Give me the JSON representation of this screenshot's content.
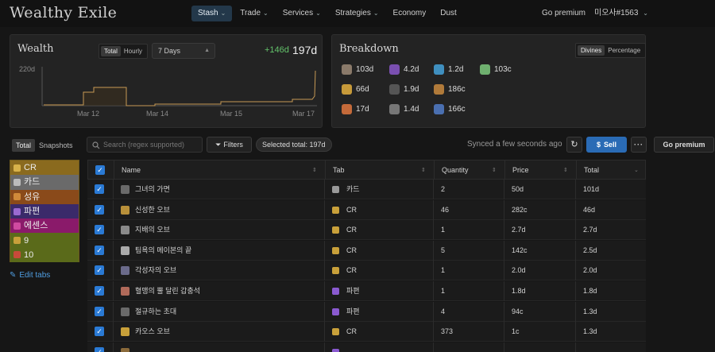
{
  "app": {
    "title": "Wealthy Exile"
  },
  "nav": {
    "items": [
      {
        "label": "Stash",
        "chevron": true,
        "active": true
      },
      {
        "label": "Trade",
        "chevron": true
      },
      {
        "label": "Services",
        "chevron": true
      },
      {
        "label": "Strategies",
        "chevron": true
      },
      {
        "label": "Economy",
        "chevron": false
      },
      {
        "label": "Dust",
        "chevron": false
      }
    ],
    "go_premium": "Go premium",
    "user": "미오사#1563"
  },
  "wealth": {
    "title": "Wealth",
    "toggle": [
      "Total",
      "Hourly"
    ],
    "range": "7 Days",
    "gain": "+146d",
    "total": "197d",
    "chart_data": {
      "type": "area",
      "y_tick": "220d",
      "x_ticks": [
        "Mar 12",
        "Mar 14",
        "Mar 15",
        "Mar 17"
      ]
    }
  },
  "breakdown": {
    "title": "Breakdown",
    "toggle": [
      "Divines",
      "Percentage"
    ],
    "items": [
      {
        "value": "103d",
        "icon": "card-icon",
        "color": "#8a7a6a"
      },
      {
        "value": "4.2d",
        "icon": "fragment-icon",
        "color": "#7a4fb0"
      },
      {
        "value": "1.2d",
        "icon": "essence-icon",
        "color": "#3f8fbf"
      },
      {
        "value": "103c",
        "icon": "recycle-icon",
        "color": "#6fb06f"
      },
      {
        "value": "66d",
        "icon": "currency-icon",
        "color": "#c79a3a"
      },
      {
        "value": "1.9d",
        "icon": "scarab-icon",
        "color": "#555555"
      },
      {
        "value": "186c",
        "icon": "fossil-icon",
        "color": "#b07a3a"
      },
      {
        "value": "17d",
        "icon": "delirium-icon",
        "color": "#c46a3a"
      },
      {
        "value": "1.4d",
        "icon": "oil-icon",
        "color": "#777777"
      },
      {
        "value": "166c",
        "icon": "map-icon",
        "color": "#4a6fb0"
      }
    ]
  },
  "toolbar": {
    "view": [
      "Total",
      "Snapshots"
    ],
    "search_placeholder": "Search (regex supported)",
    "filters": "Filters",
    "selected": "Selected total: 197d",
    "synced": "Synced a few seconds ago",
    "sell": "Sell",
    "go_premium": "Go premium"
  },
  "tabs": {
    "items": [
      {
        "label": "CR",
        "bg": "#8a6a1e",
        "icon": "#d8b24a"
      },
      {
        "label": "카드",
        "bg": "#6a6a6a",
        "icon": "#bbbbbb"
      },
      {
        "label": "성유",
        "bg": "#8a4a1a",
        "icon": "#d08a3a"
      },
      {
        "label": "파편",
        "bg": "#3a2a6a",
        "icon": "#9a6ad0"
      },
      {
        "label": "에센스",
        "bg": "#8a1a6a",
        "icon": "#d04aa0"
      },
      {
        "label": "9",
        "bg": "#5a6a1a",
        "icon": "#c8a03a"
      },
      {
        "label": "10",
        "bg": "#5a6a1a",
        "icon": "#c84a3a"
      }
    ],
    "edit": "Edit tabs"
  },
  "table": {
    "headers": [
      "Name",
      "Tab",
      "Quantity",
      "Price",
      "Total"
    ],
    "rows": [
      {
        "name": "그녀의 가면",
        "tab": "카드",
        "qty": "2",
        "price": "50d",
        "total": "101d",
        "icon": "#6a6a6a",
        "tab_icon": "#999999"
      },
      {
        "name": "신성한 오브",
        "tab": "CR",
        "qty": "46",
        "price": "282c",
        "total": "46d",
        "icon": "#b8903a",
        "tab_icon": "#c8a03a"
      },
      {
        "name": "지배의 오브",
        "tab": "CR",
        "qty": "1",
        "price": "2.7d",
        "total": "2.7d",
        "icon": "#8a8a8a",
        "tab_icon": "#c8a03a"
      },
      {
        "name": "팀욕의 메이본의 끝",
        "tab": "CR",
        "qty": "5",
        "price": "142c",
        "total": "2.5d",
        "icon": "#aaaaaa",
        "tab_icon": "#c8a03a"
      },
      {
        "name": "각성자의 오브",
        "tab": "CR",
        "qty": "1",
        "price": "2.0d",
        "total": "2.0d",
        "icon": "#6a6a8a",
        "tab_icon": "#c8a03a"
      },
      {
        "name": "혈맹의 뿔 달린 갑충석",
        "tab": "파편",
        "qty": "1",
        "price": "1.8d",
        "total": "1.8d",
        "icon": "#b06a5a",
        "tab_icon": "#8a5ad0"
      },
      {
        "name": "절규하는 초대",
        "tab": "파편",
        "qty": "4",
        "price": "94c",
        "total": "1.3d",
        "icon": "#6a6a6a",
        "tab_icon": "#8a5ad0"
      },
      {
        "name": "카오스 오브",
        "tab": "CR",
        "qty": "373",
        "price": "1c",
        "total": "1.3d",
        "icon": "#c8a03a",
        "tab_icon": "#c8a03a"
      },
      {
        "name": "",
        "tab": "",
        "qty": "",
        "price": "",
        "total": "",
        "icon": "#8a6a3a",
        "tab_icon": "#8a5ad0"
      }
    ]
  }
}
